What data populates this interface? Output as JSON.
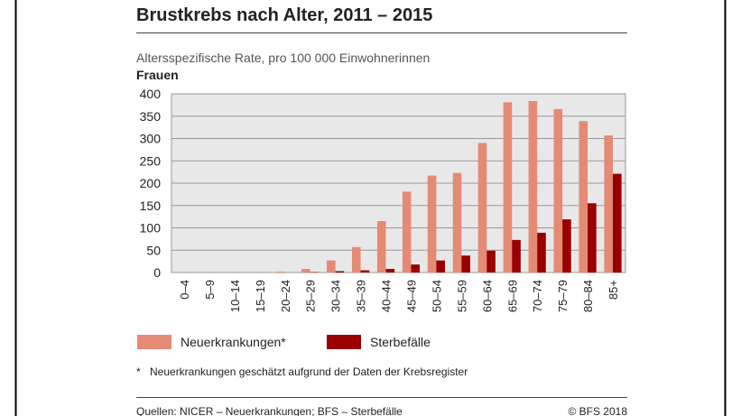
{
  "chart_data": {
    "type": "bar",
    "title": "Brustkrebs nach Alter, 2011 – 2015",
    "subtitle": "Altersspezifische Rate, pro 100 000 Einwohnerinnen",
    "group_label": "Frauen",
    "categories": [
      "0–4",
      "5–9",
      "10–14",
      "15–19",
      "20–24",
      "25–29",
      "30–34",
      "35–39",
      "40–44",
      "45–49",
      "50–54",
      "55–59",
      "60–64",
      "65–69",
      "70–74",
      "75–79",
      "80–84",
      "85+"
    ],
    "series": [
      {
        "name": "Neuerkrankungen*",
        "color": "#e58a74",
        "values": [
          0,
          0,
          0,
          0,
          2,
          8,
          27,
          57,
          115,
          181,
          217,
          223,
          290,
          381,
          384,
          366,
          339,
          307
        ]
      },
      {
        "name": "Sterbefälle",
        "color": "#990000",
        "values": [
          0,
          0,
          0,
          0,
          0,
          1,
          3,
          5,
          8,
          18,
          27,
          38,
          49,
          73,
          89,
          119,
          155,
          221
        ]
      }
    ],
    "ylim": [
      0,
      400
    ],
    "yticks": [
      0,
      50,
      100,
      150,
      200,
      250,
      300,
      350,
      400
    ],
    "grid": true,
    "footnote_marker": "*",
    "footnote": "Neuerkrankungen geschätzt aufgrund der Daten der Krebsregister",
    "source": "Quellen: NICER – Neuerkrankungen; BFS – Sterbefälle",
    "copyright": "© BFS 2018"
  }
}
